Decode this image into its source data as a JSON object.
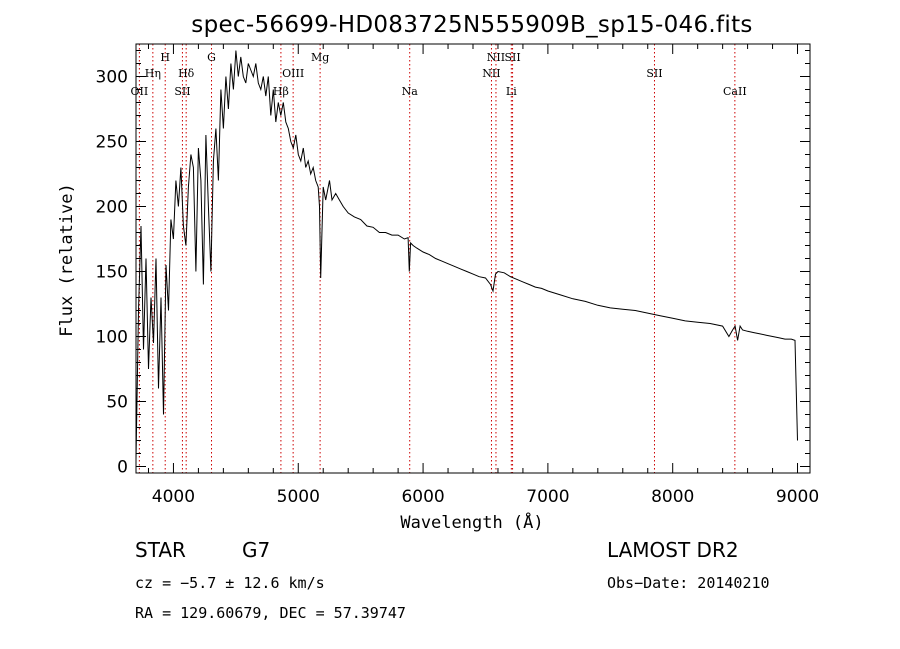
{
  "chart_data": {
    "type": "line",
    "title": "spec-56699-HD083725N555909B_sp15-046.fits",
    "xlabel": "Wavelength (Å)",
    "ylabel": "Flux (relative)",
    "xlim": [
      3700,
      9100
    ],
    "ylim": [
      -5,
      325
    ],
    "x_ticks": [
      4000,
      5000,
      6000,
      7000,
      8000,
      9000
    ],
    "y_ticks": [
      0,
      50,
      100,
      150,
      200,
      250,
      300
    ],
    "grid": false,
    "series": [
      {
        "x": [
          3700,
          3720,
          3740,
          3760,
          3780,
          3800,
          3820,
          3840,
          3860,
          3880,
          3900,
          3920,
          3940,
          3960,
          3980,
          4000,
          4020,
          4040,
          4060,
          4080,
          4100,
          4120,
          4140,
          4160,
          4180,
          4200,
          4220,
          4240,
          4260,
          4280,
          4300,
          4320,
          4340,
          4360,
          4380,
          4400,
          4420,
          4440,
          4460,
          4480,
          4500,
          4520,
          4540,
          4560,
          4580,
          4600,
          4620,
          4640,
          4660,
          4680,
          4700,
          4720,
          4740,
          4760,
          4780,
          4800,
          4820,
          4840,
          4860,
          4880,
          4900,
          4920,
          4940,
          4960,
          4980,
          5000,
          5020,
          5040,
          5060,
          5080,
          5100,
          5120,
          5140,
          5160,
          5170,
          5180,
          5200,
          5220,
          5250,
          5270,
          5300,
          5330,
          5360,
          5400,
          5450,
          5500,
          5550,
          5600,
          5650,
          5700,
          5750,
          5800,
          5850,
          5880,
          5890,
          5900,
          5920,
          5950,
          6000,
          6050,
          6100,
          6150,
          6200,
          6250,
          6300,
          6350,
          6400,
          6450,
          6500,
          6540,
          6560,
          6580,
          6600,
          6650,
          6700,
          6750,
          6800,
          6850,
          6900,
          6950,
          7000,
          7100,
          7200,
          7300,
          7400,
          7500,
          7600,
          7700,
          7800,
          7900,
          8000,
          8100,
          8200,
          8300,
          8400,
          8450,
          8480,
          8500,
          8520,
          8540,
          8560,
          8600,
          8650,
          8700,
          8750,
          8800,
          8850,
          8900,
          8950,
          8980,
          9000
        ],
        "y": [
          5,
          120,
          185,
          90,
          160,
          75,
          130,
          95,
          160,
          60,
          130,
          40,
          155,
          120,
          190,
          175,
          220,
          200,
          230,
          185,
          170,
          215,
          240,
          230,
          150,
          245,
          220,
          140,
          255,
          200,
          150,
          235,
          260,
          220,
          290,
          260,
          300,
          275,
          310,
          290,
          320,
          300,
          315,
          300,
          295,
          310,
          305,
          300,
          310,
          295,
          290,
          300,
          285,
          300,
          270,
          290,
          265,
          280,
          270,
          280,
          265,
          260,
          250,
          245,
          255,
          240,
          235,
          245,
          230,
          235,
          225,
          230,
          220,
          215,
          200,
          145,
          215,
          205,
          220,
          205,
          210,
          205,
          200,
          195,
          192,
          190,
          185,
          184,
          180,
          180,
          178,
          178,
          175,
          176,
          150,
          172,
          170,
          168,
          165,
          163,
          160,
          158,
          156,
          154,
          152,
          150,
          148,
          146,
          145,
          140,
          135,
          148,
          150,
          149,
          146,
          144,
          142,
          140,
          138,
          137,
          135,
          132,
          129,
          127,
          124,
          122,
          121,
          120,
          118,
          116,
          114,
          112,
          111,
          110,
          108,
          100,
          105,
          108,
          97,
          108,
          105,
          104,
          103,
          102,
          101,
          100,
          99,
          98,
          98,
          97,
          20
        ]
      }
    ],
    "spectral_lines": [
      {
        "label": "OII",
        "x": 3727,
        "row": 3
      },
      {
        "label": "Hη",
        "x": 3835,
        "row": 2
      },
      {
        "label": "H",
        "x": 3934,
        "row": 1
      },
      {
        "label": "Hδ",
        "x": 4102,
        "row": 2
      },
      {
        "label": "SII",
        "x": 4072,
        "row": 3
      },
      {
        "label": "G",
        "x": 4305,
        "row": 1
      },
      {
        "label": "Hβ",
        "x": 4861,
        "row": 3
      },
      {
        "label": "OIII",
        "x": 4959,
        "row": 2
      },
      {
        "label": "Mg",
        "x": 5175,
        "row": 1
      },
      {
        "label": "Na",
        "x": 5893,
        "row": 3
      },
      {
        "label": "NII",
        "x": 6548,
        "row": 2
      },
      {
        "label": "NII",
        "x": 6584,
        "row": 1
      },
      {
        "label": "SII",
        "x": 6717,
        "row": 1
      },
      {
        "label": "Li",
        "x": 6707,
        "row": 3
      },
      {
        "label": "SII",
        "x": 7854,
        "row": 2
      },
      {
        "label": "CaII",
        "x": 8498,
        "row": 3
      }
    ],
    "line_color": "#000000",
    "marker_color": "#cc0000"
  },
  "info": {
    "object_type": "STAR",
    "subclass": "G7",
    "survey": "LAMOST DR2",
    "cz": "cz = −5.7 ± 12.6 km/s",
    "obs_date": "Obs−Date: 20140210",
    "radec": "RA = 129.60679, DEC =  57.39747"
  }
}
